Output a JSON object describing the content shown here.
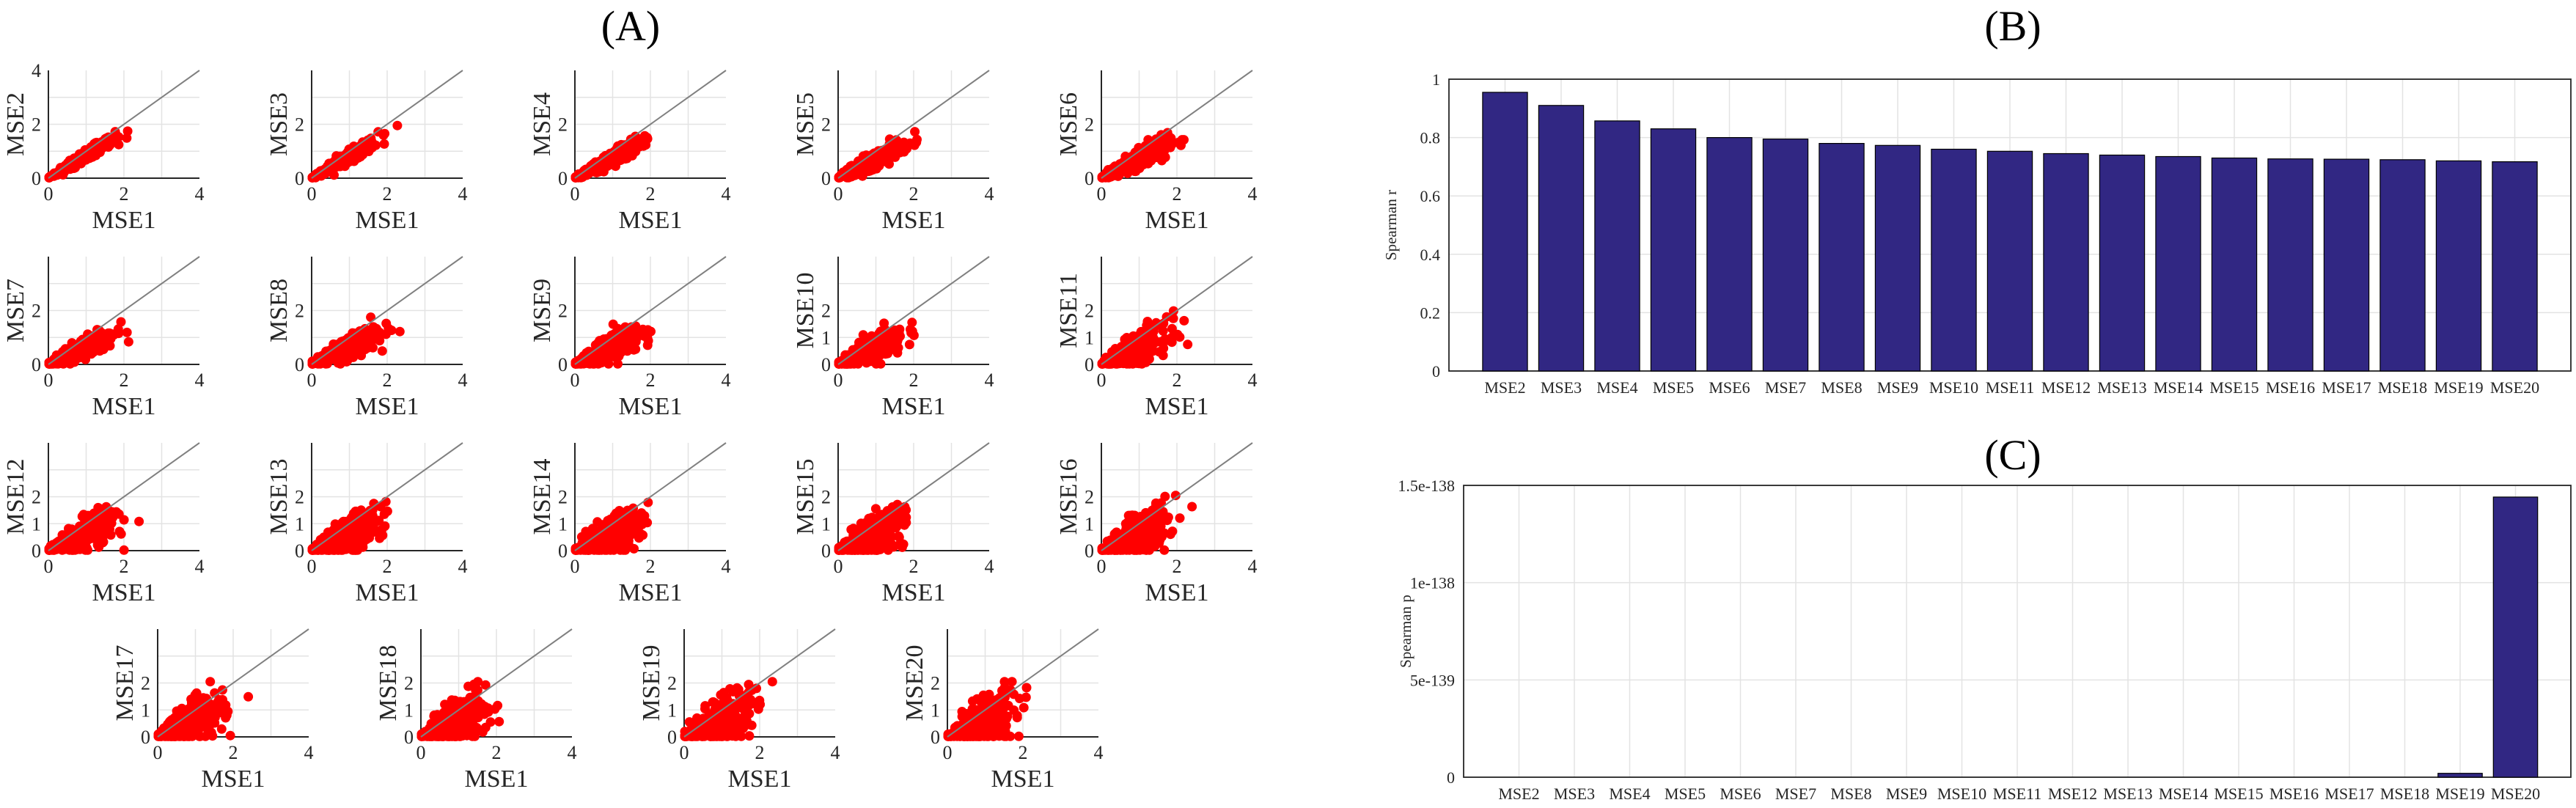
{
  "panels": {
    "a": "(A)",
    "b": "(B)",
    "c": "(C)"
  },
  "colors": {
    "scatter": "#ff0000",
    "bar": "#312783",
    "identity_line": "#808080",
    "axis": "#262626",
    "grid": "#e3e3e3"
  },
  "chart_data": [
    {
      "panel": "(A)",
      "type": "scatter",
      "description": "grid of 19 scatter plots, each MSEk vs MSE1, with identity line y=x",
      "xlabel": "MSE1",
      "ylabels": [
        "MSE2",
        "MSE3",
        "MSE4",
        "MSE5",
        "MSE6",
        "MSE7",
        "MSE8",
        "MSE9",
        "MSE10",
        "MSE11",
        "MSE12",
        "MSE13",
        "MSE14",
        "MSE15",
        "MSE16",
        "MSE17",
        "MSE18",
        "MSE19",
        "MSE20"
      ],
      "xlim": [
        0,
        4
      ],
      "ylim": [
        0,
        4
      ],
      "xticks": [
        0,
        2,
        4
      ],
      "yticks_first": [
        0,
        2,
        4
      ],
      "yticks_second_row": [
        0,
        2
      ],
      "yticks_mse10_plus": [
        0,
        1,
        2
      ],
      "approx_x_range": [
        0,
        2.4
      ],
      "approx_slope_by_order": [
        0.85,
        0.8,
        0.75,
        0.72,
        0.7,
        0.68,
        0.66,
        0.65,
        0.64,
        0.63,
        0.62,
        0.62,
        0.61,
        0.61,
        0.6,
        0.6,
        0.6,
        0.6,
        0.6
      ],
      "identity_line": true,
      "grid": true
    },
    {
      "panel": "(B)",
      "type": "bar",
      "categories": [
        "MSE2",
        "MSE3",
        "MSE4",
        "MSE5",
        "MSE6",
        "MSE7",
        "MSE8",
        "MSE9",
        "MSE10",
        "MSE11",
        "MSE12",
        "MSE13",
        "MSE14",
        "MSE15",
        "MSE16",
        "MSE17",
        "MSE18",
        "MSE19",
        "MSE20"
      ],
      "values": [
        0.955,
        0.91,
        0.857,
        0.83,
        0.8,
        0.795,
        0.78,
        0.773,
        0.76,
        0.753,
        0.745,
        0.74,
        0.735,
        0.73,
        0.727,
        0.726,
        0.724,
        0.72,
        0.717
      ],
      "ylabel": "Spearman r",
      "ylim": [
        0,
        1
      ],
      "yticks": [
        "0",
        "0.2",
        "0.4",
        "0.6",
        "0.8",
        "1"
      ],
      "grid": true
    },
    {
      "panel": "(C)",
      "type": "bar",
      "categories": [
        "MSE2",
        "MSE3",
        "MSE4",
        "MSE5",
        "MSE6",
        "MSE7",
        "MSE8",
        "MSE9",
        "MSE10",
        "MSE11",
        "MSE12",
        "MSE13",
        "MSE14",
        "MSE15",
        "MSE16",
        "MSE17",
        "MSE18",
        "MSE19",
        "MSE20"
      ],
      "values_in_e_minus_139": [
        0,
        0,
        0,
        0,
        0,
        0,
        0,
        0,
        0,
        0,
        0,
        0,
        0,
        0,
        0,
        0,
        0,
        0.2,
        14.4
      ],
      "ylabel": "Spearman p",
      "ylim_in_e_minus_139": [
        0,
        15
      ],
      "yticks": [
        "0",
        "5e-139",
        "1e-138",
        "1.5e-138"
      ],
      "grid": true
    }
  ]
}
